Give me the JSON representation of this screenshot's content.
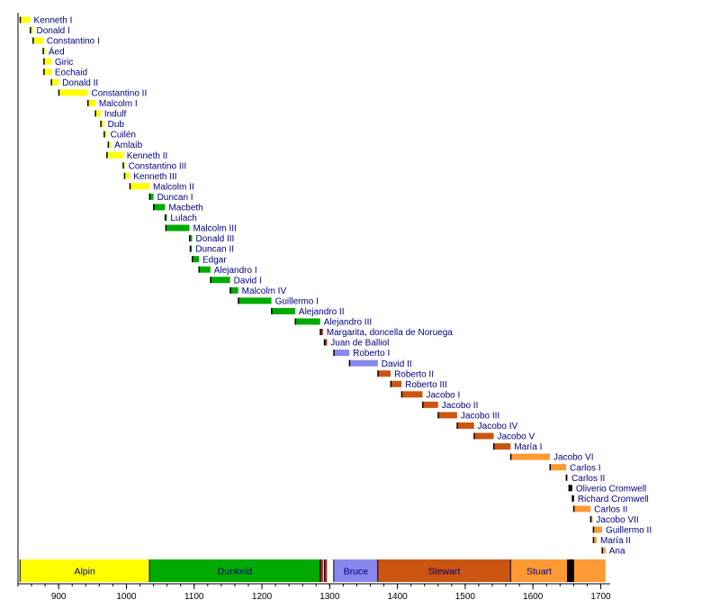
{
  "chart_data": {
    "type": "timeline",
    "title": "",
    "xlabel": "",
    "ylabel": "",
    "xlim": [
      840,
      1714
    ],
    "xticks": [
      900,
      1000,
      1100,
      1200,
      1300,
      1400,
      1500,
      1600,
      1700
    ],
    "colors": {
      "Alpin": "#ffff00",
      "Dunkeld": "#00aa00",
      "Balliol": "#aa2222",
      "Bruce": "#8888ee",
      "Stewart": "#cc5511",
      "Stuart": "#ff9933",
      "Commonwealth": "#000000",
      "Norway": "#aa2222"
    },
    "rulers": [
      {
        "name": "Kenneth I",
        "start": 843,
        "end": 858,
        "house": "Alpin"
      },
      {
        "name": "Donald I",
        "start": 858,
        "end": 862,
        "house": "Alpin"
      },
      {
        "name": "Constantino I",
        "start": 862,
        "end": 877,
        "house": "Alpin"
      },
      {
        "name": "Áed",
        "start": 877,
        "end": 878,
        "house": "Alpin"
      },
      {
        "name": "Giric",
        "start": 878,
        "end": 889,
        "house": "Alpin"
      },
      {
        "name": "Eochaid",
        "start": 878,
        "end": 889,
        "house": "Alpin"
      },
      {
        "name": "Donald II",
        "start": 889,
        "end": 900,
        "house": "Alpin"
      },
      {
        "name": "Constantino II",
        "start": 900,
        "end": 943,
        "house": "Alpin"
      },
      {
        "name": "Malcolm I",
        "start": 943,
        "end": 954,
        "house": "Alpin"
      },
      {
        "name": "Indulf",
        "start": 954,
        "end": 962,
        "house": "Alpin"
      },
      {
        "name": "Dub",
        "start": 962,
        "end": 967,
        "house": "Alpin"
      },
      {
        "name": "Cuilén",
        "start": 967,
        "end": 971,
        "house": "Alpin"
      },
      {
        "name": "Amlaíb",
        "start": 973,
        "end": 977,
        "house": "Alpin"
      },
      {
        "name": "Kenneth II",
        "start": 971,
        "end": 995,
        "house": "Alpin"
      },
      {
        "name": "Constantino III",
        "start": 995,
        "end": 997,
        "house": "Alpin"
      },
      {
        "name": "Kenneth III",
        "start": 997,
        "end": 1005,
        "house": "Alpin"
      },
      {
        "name": "Malcolm II",
        "start": 1005,
        "end": 1034,
        "house": "Alpin"
      },
      {
        "name": "Duncan I",
        "start": 1034,
        "end": 1040,
        "house": "Dunkeld"
      },
      {
        "name": "Macbeth",
        "start": 1040,
        "end": 1057,
        "house": "Dunkeld"
      },
      {
        "name": "Lulach",
        "start": 1057,
        "end": 1058,
        "house": "Dunkeld"
      },
      {
        "name": "Malcolm III",
        "start": 1058,
        "end": 1093,
        "house": "Dunkeld"
      },
      {
        "name": "Donald III",
        "start": 1093,
        "end": 1097,
        "house": "Dunkeld"
      },
      {
        "name": "Duncan II",
        "start": 1094,
        "end": 1094.6,
        "house": "Dunkeld"
      },
      {
        "name": "Edgar",
        "start": 1097,
        "end": 1107,
        "house": "Dunkeld"
      },
      {
        "name": "Alejandro I",
        "start": 1107,
        "end": 1124,
        "house": "Dunkeld"
      },
      {
        "name": "David I",
        "start": 1124,
        "end": 1153,
        "house": "Dunkeld"
      },
      {
        "name": "Malcolm IV",
        "start": 1153,
        "end": 1165,
        "house": "Dunkeld"
      },
      {
        "name": "Guillermo I",
        "start": 1165,
        "end": 1214,
        "house": "Dunkeld"
      },
      {
        "name": "Alejandro II",
        "start": 1214,
        "end": 1249,
        "house": "Dunkeld"
      },
      {
        "name": "Alejandro III",
        "start": 1249,
        "end": 1286,
        "house": "Dunkeld"
      },
      {
        "name": "Margarita, doncella de Noruega",
        "start": 1286,
        "end": 1290,
        "house": "Norway"
      },
      {
        "name": "Juan de Balliol",
        "start": 1292,
        "end": 1296,
        "house": "Balliol"
      },
      {
        "name": "Roberto I",
        "start": 1306,
        "end": 1329,
        "house": "Bruce"
      },
      {
        "name": "David II",
        "start": 1329,
        "end": 1371,
        "house": "Bruce"
      },
      {
        "name": "Roberto II",
        "start": 1371,
        "end": 1390,
        "house": "Stewart"
      },
      {
        "name": "Roberto III",
        "start": 1390,
        "end": 1406,
        "house": "Stewart"
      },
      {
        "name": "Jacobo I",
        "start": 1406,
        "end": 1437,
        "house": "Stewart"
      },
      {
        "name": "Jacobo II",
        "start": 1437,
        "end": 1460,
        "house": "Stewart"
      },
      {
        "name": "Jacobo III",
        "start": 1460,
        "end": 1488,
        "house": "Stewart"
      },
      {
        "name": "Jacobo IV",
        "start": 1488,
        "end": 1513,
        "house": "Stewart"
      },
      {
        "name": "Jacobo V",
        "start": 1513,
        "end": 1542,
        "house": "Stewart"
      },
      {
        "name": "María I",
        "start": 1542,
        "end": 1567,
        "house": "Stewart"
      },
      {
        "name": "Jacobo VI",
        "start": 1567,
        "end": 1625,
        "house": "Stuart"
      },
      {
        "name": "Carlos I",
        "start": 1625,
        "end": 1649,
        "house": "Stuart"
      },
      {
        "name": "Carlos II",
        "start": 1649,
        "end": 1651,
        "house": "Stuart"
      },
      {
        "name": "Oliverio Cromwell",
        "start": 1653,
        "end": 1658,
        "house": "Commonwealth"
      },
      {
        "name": "Richard Cromwell",
        "start": 1658,
        "end": 1659,
        "house": "Commonwealth"
      },
      {
        "name": "Carlos II",
        "start": 1660,
        "end": 1685,
        "house": "Stuart"
      },
      {
        "name": "Jacobo VII",
        "start": 1685,
        "end": 1688,
        "house": "Stuart"
      },
      {
        "name": "Guillermo II",
        "start": 1689,
        "end": 1702,
        "house": "Stuart"
      },
      {
        "name": "María II",
        "start": 1689,
        "end": 1694,
        "house": "Stuart"
      },
      {
        "name": "Ana",
        "start": 1702,
        "end": 1707,
        "house": "Stuart"
      }
    ],
    "dynasty_band": [
      {
        "label": "Alpin",
        "start": 843,
        "end": 1034,
        "house": "Alpin"
      },
      {
        "label": "Dunkeld",
        "start": 1034,
        "end": 1286,
        "house": "Dunkeld"
      },
      {
        "label": "",
        "start": 1286,
        "end": 1290,
        "house": "Norway"
      },
      {
        "label": "",
        "start": 1292,
        "end": 1296,
        "house": "Balliol"
      },
      {
        "label": "Bruce",
        "start": 1306,
        "end": 1371,
        "house": "Bruce"
      },
      {
        "label": "Stewart",
        "start": 1371,
        "end": 1567,
        "house": "Stewart"
      },
      {
        "label": "Stuart",
        "start": 1567,
        "end": 1651,
        "house": "Stuart"
      },
      {
        "label": "",
        "start": 1651,
        "end": 1660,
        "house": "Commonwealth"
      },
      {
        "label": "",
        "start": 1660,
        "end": 1707,
        "house": "Stuart"
      }
    ]
  }
}
